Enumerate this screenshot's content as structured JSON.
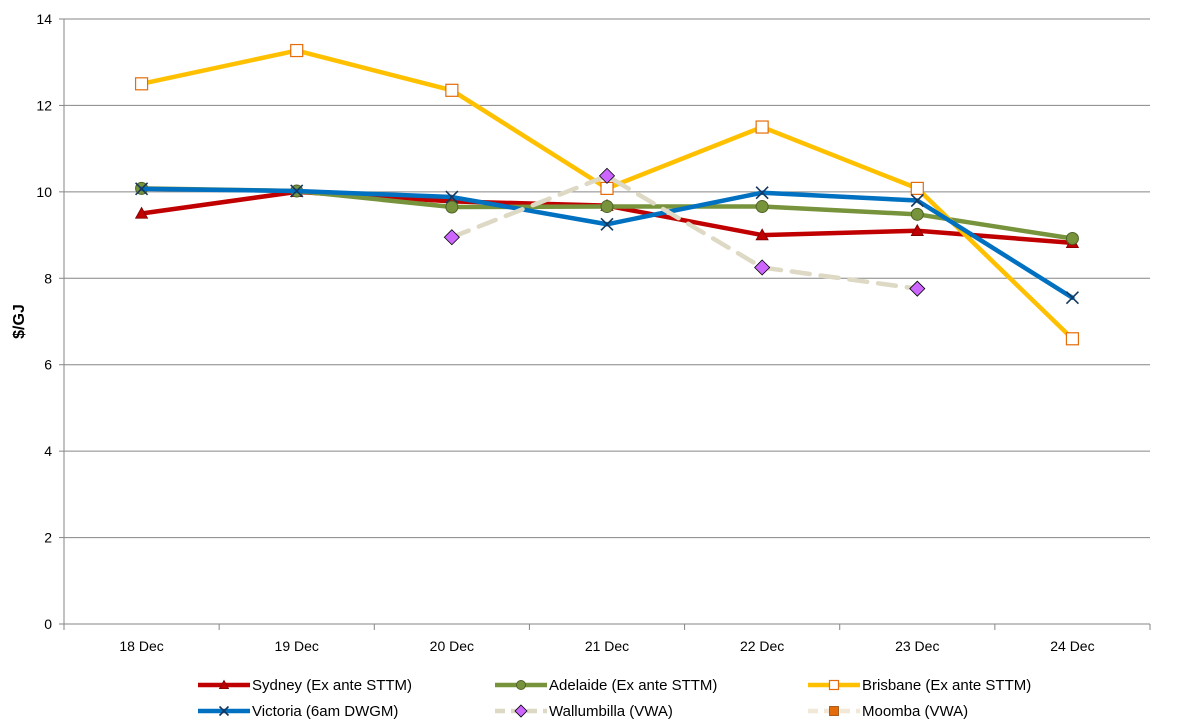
{
  "chart_data": {
    "type": "line",
    "title": "",
    "xlabel": "",
    "ylabel": "$/GJ",
    "ylim": [
      0,
      14
    ],
    "yticks": [
      0,
      2,
      4,
      6,
      8,
      10,
      12,
      14
    ],
    "grid": true,
    "legend_position": "bottom",
    "categories": [
      "18 Dec",
      "19 Dec",
      "20 Dec",
      "21 Dec",
      "22 Dec",
      "23 Dec",
      "24 Dec"
    ],
    "series": [
      {
        "name": "Sydney (Ex ante STTM)",
        "color": "#c00000",
        "marker": "triangle",
        "line_style": "solid",
        "values": [
          9.5,
          10.0,
          9.78,
          9.68,
          9.0,
          9.1,
          8.82
        ]
      },
      {
        "name": "Adelaide (Ex ante STTM)",
        "color": "#77933c",
        "marker": "circle",
        "line_style": "solid",
        "values": [
          10.08,
          10.02,
          9.65,
          9.66,
          9.66,
          9.48,
          8.92
        ]
      },
      {
        "name": "Brisbane (Ex ante STTM)",
        "color": "#ffc000",
        "marker": "square-open",
        "line_style": "solid",
        "values": [
          12.5,
          13.27,
          12.35,
          10.08,
          11.5,
          10.08,
          6.6
        ]
      },
      {
        "name": "Victoria (6am DWGM)",
        "color": "#0070c0",
        "marker": "x",
        "line_style": "solid",
        "values": [
          10.07,
          10.02,
          9.88,
          9.25,
          9.98,
          9.8,
          7.55
        ]
      },
      {
        "name": "Wallumbilla (VWA)",
        "color": "#ddd9c4",
        "marker_color": "#cc66ff",
        "marker": "diamond",
        "line_style": "dashed",
        "values": [
          null,
          null,
          8.95,
          10.37,
          8.25,
          7.76,
          null
        ]
      },
      {
        "name": "Moomba (VWA)",
        "color": "#f2e8d8",
        "marker_color": "#e46c0a",
        "marker": "square",
        "line_style": "dashed",
        "values": [
          null,
          null,
          null,
          null,
          null,
          null,
          null
        ]
      }
    ]
  }
}
